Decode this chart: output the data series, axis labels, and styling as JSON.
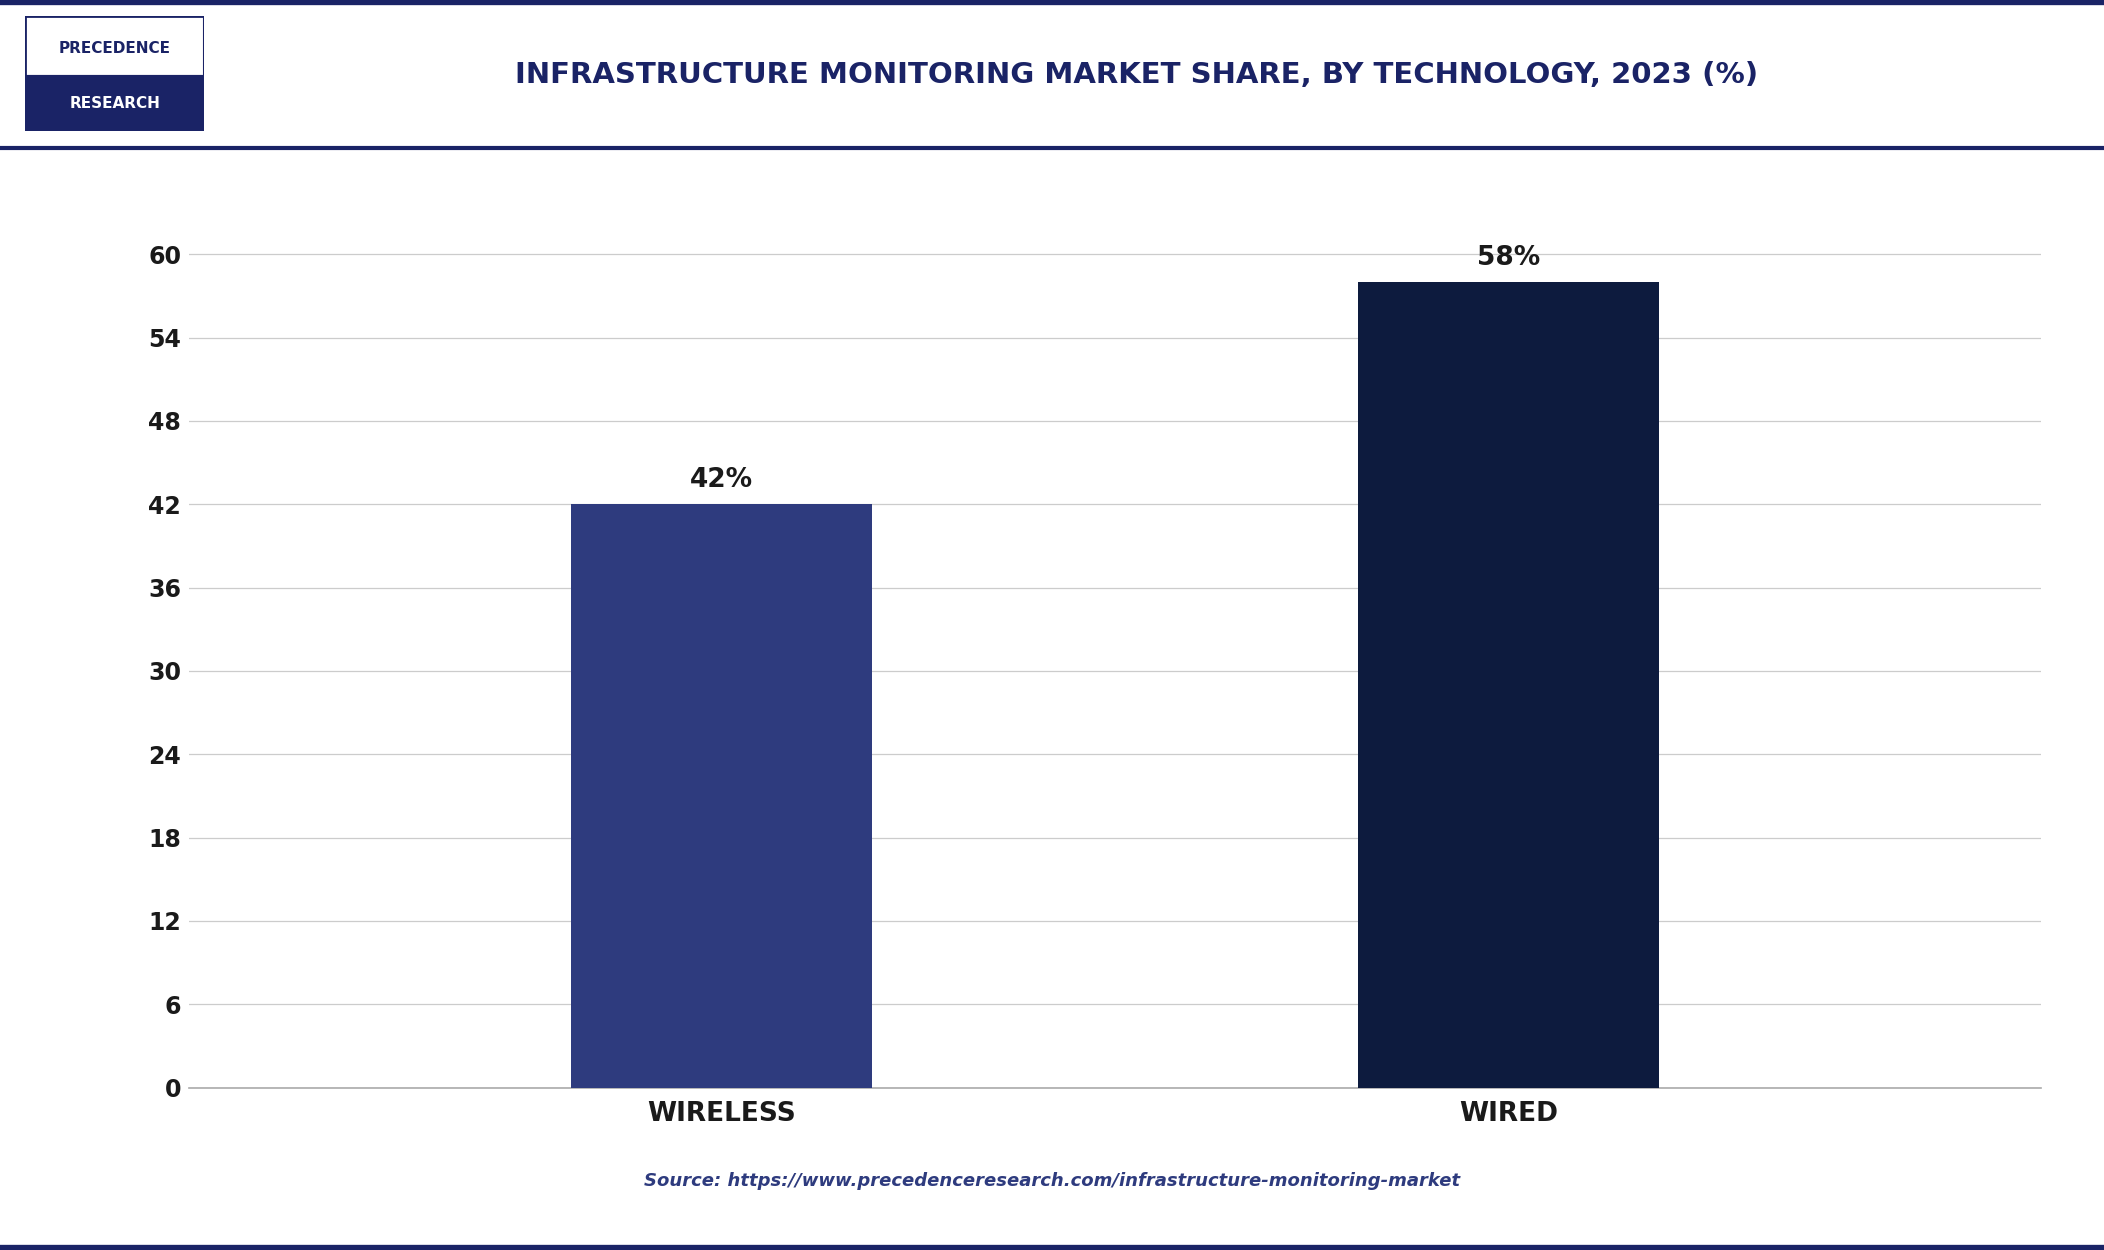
{
  "title": "INFRASTRUCTURE MONITORING MARKET SHARE, BY TECHNOLOGY, 2023 (%)",
  "categories": [
    "WIRELESS",
    "WIRED"
  ],
  "values": [
    42,
    58
  ],
  "labels": [
    "42%",
    "58%"
  ],
  "bar_colors": [
    "#2e3b7e",
    "#0d1b3e"
  ],
  "ylim": [
    0,
    63
  ],
  "yticks": [
    0,
    6,
    12,
    18,
    24,
    30,
    36,
    42,
    48,
    54,
    60
  ],
  "background_color": "#ffffff",
  "plot_bg_color": "#ffffff",
  "title_color": "#1a2366",
  "axis_label_color": "#1a1a1a",
  "source_text": "Source: https://www.precedenceresearch.com/infrastructure-monitoring-market",
  "source_color": "#2e3b7e",
  "header_bg_bottom": "#1a2366",
  "logo_text_top": "PRECEDENCE",
  "logo_text_bottom": "RESEARCH",
  "border_color": "#1a2366",
  "grid_color": "#cccccc",
  "bar_width": 0.13,
  "x_positions": [
    0.33,
    0.67
  ]
}
